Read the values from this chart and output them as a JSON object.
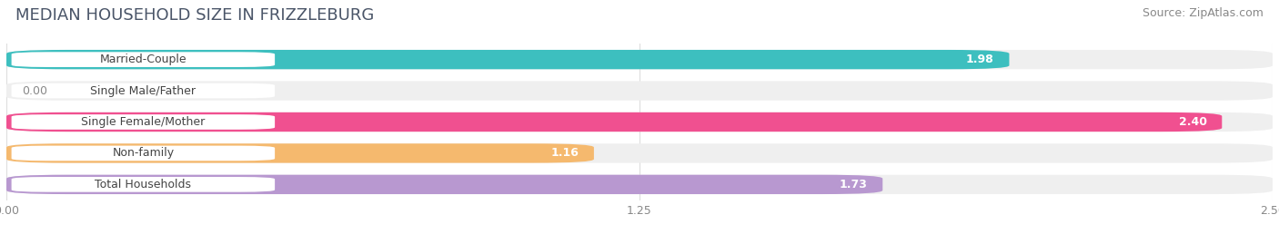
{
  "title": "MEDIAN HOUSEHOLD SIZE IN FRIZZLEBURG",
  "source": "Source: ZipAtlas.com",
  "categories": [
    "Married-Couple",
    "Single Male/Father",
    "Single Female/Mother",
    "Non-family",
    "Total Households"
  ],
  "values": [
    1.98,
    0.0,
    2.4,
    1.16,
    1.73
  ],
  "bar_colors": [
    "#3dbfbf",
    "#a0aee0",
    "#f05090",
    "#f5b96e",
    "#b898d0"
  ],
  "xlim": [
    0,
    2.5
  ],
  "xticks": [
    0.0,
    1.25,
    2.5
  ],
  "xticklabels": [
    "0.00",
    "1.25",
    "2.50"
  ],
  "background_color": "#ffffff",
  "bar_bg_color": "#efefef",
  "title_fontsize": 13,
  "source_fontsize": 9,
  "label_fontsize": 9,
  "value_fontsize": 9,
  "bar_height": 0.62,
  "title_color": "#4a5568",
  "source_color": "#888888",
  "label_color": "#444444",
  "value_color_inside": "#ffffff",
  "value_color_outside": "#888888",
  "grid_color": "#dddddd"
}
